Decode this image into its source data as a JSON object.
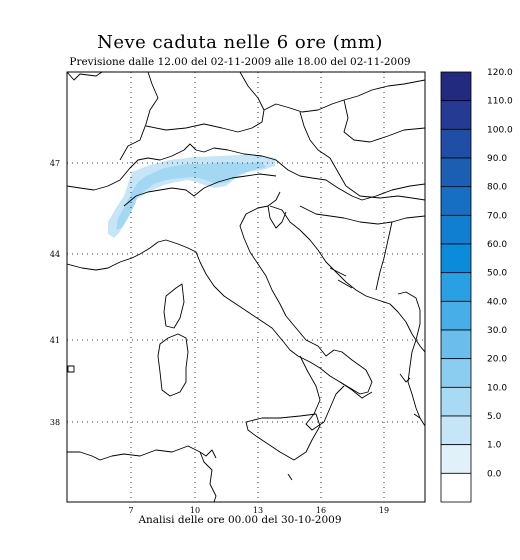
{
  "title": "Neve caduta nelle 6 ore (mm)",
  "subtitle": "Previsione dalle 12.00 del 02-11-2009 alle 18.00 del 02-11-2009",
  "footer": "Analisi delle ore 00.00 del 30-10-2009",
  "map": {
    "x_ticks": [
      "7",
      "10",
      "13",
      "16",
      "19"
    ],
    "y_ticks": [
      "47",
      "44",
      "41",
      "38"
    ],
    "snow_color_light": "#c6e6f7",
    "snow_color_mid": "#a3d8f3"
  },
  "colorbar": {
    "labels": [
      "120.0",
      "110.0",
      "100.0",
      "90.0",
      "80.0",
      "70.0",
      "60.0",
      "50.0",
      "40.0",
      "30.0",
      "20.0",
      "10.0",
      "5.0",
      "1.0",
      "0.0"
    ],
    "colors": [
      "#222a80",
      "#253a92",
      "#1f4ea6",
      "#1a5fb4",
      "#166fc3",
      "#107fd1",
      "#0a8cdb",
      "#2aa0e4",
      "#48aee7",
      "#6bbdec",
      "#8bcdf1",
      "#a8daf4",
      "#c6e6f7",
      "#e0f1fa",
      "#ffffff"
    ]
  }
}
